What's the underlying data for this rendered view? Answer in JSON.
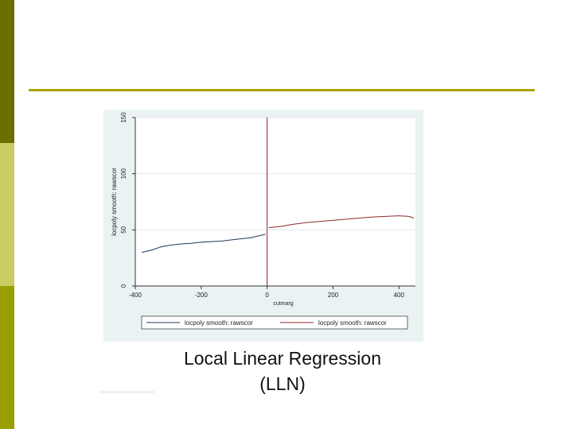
{
  "colors": {
    "sidebar_dark": "#6b6e00",
    "sidebar_light": "#c9cc62",
    "sidebar_mid": "#9a9f00",
    "rule": "#a8a400",
    "panel_bg": "#eaf2f3",
    "cutoff_line": "#8b1a3a",
    "series_left": "#1f3a5a",
    "series_right": "#8b2a2a"
  },
  "caption": {
    "line1": "Local Linear Regression",
    "line2": "(LLN)"
  },
  "chart_data": {
    "type": "line",
    "title": "",
    "xlabel": "cutmarg",
    "ylabel": "locpoly smooth: rawscor",
    "xlim": [
      -400,
      450
    ],
    "ylim": [
      0,
      150
    ],
    "xticks": [
      -400,
      -200,
      0,
      200,
      400
    ],
    "yticks": [
      0,
      50,
      100,
      150
    ],
    "grid": true,
    "legend_position": "bottom",
    "cutoff_x": 0,
    "series": [
      {
        "name": "locpoly smooth: rawscor",
        "color": "#1f3a5a",
        "x": [
          -380,
          -350,
          -320,
          -290,
          -260,
          -230,
          -200,
          -170,
          -140,
          -110,
          -80,
          -50,
          -20,
          -5
        ],
        "y": [
          30,
          32,
          35,
          36.5,
          37.5,
          38,
          39,
          39.5,
          40,
          41,
          42,
          43,
          45,
          46
        ]
      },
      {
        "name": "locpoly smooth: rawscor",
        "color": "#8b2a2a",
        "x": [
          5,
          40,
          80,
          120,
          160,
          200,
          240,
          280,
          320,
          360,
          400,
          430,
          445
        ],
        "y": [
          52,
          53,
          55,
          56.5,
          57.5,
          58.5,
          59.5,
          60.5,
          61.5,
          62,
          62.5,
          62,
          60.5
        ]
      }
    ]
  }
}
